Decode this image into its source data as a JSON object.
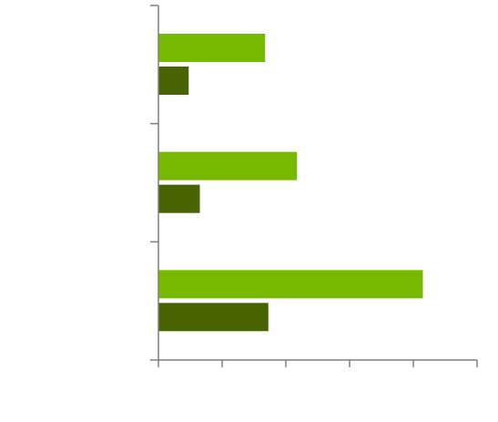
{
  "chart_data": {
    "type": "bar",
    "orientation": "horizontal",
    "categories": [
      "",
      "",
      ""
    ],
    "series": [
      {
        "values": [
          33.5,
          43.5,
          83
        ],
        "color": "#76b900"
      },
      {
        "values": [
          9.5,
          13,
          34.5
        ],
        "color": "#476400"
      }
    ],
    "xlim": [
      0,
      100
    ],
    "x_ticks": [
      0,
      20,
      40,
      60,
      80,
      100
    ],
    "title": "",
    "xlabel": "",
    "ylabel": "",
    "grid": false,
    "axis_color": "#7f7f7f"
  }
}
